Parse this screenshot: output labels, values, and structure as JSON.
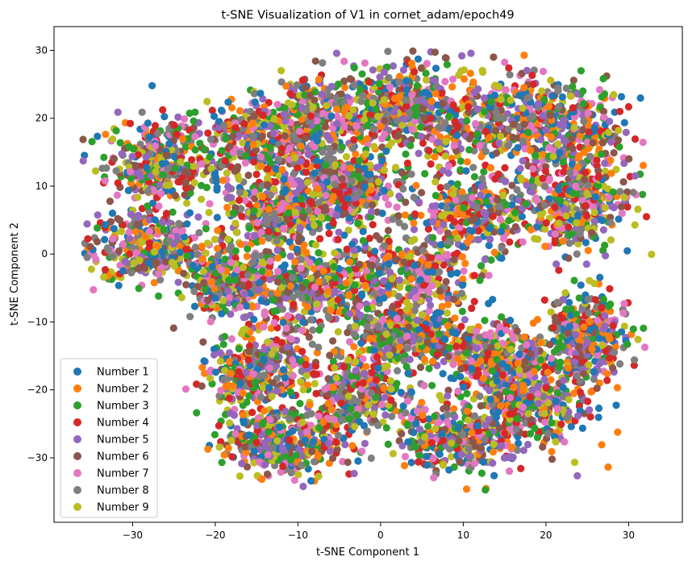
{
  "chart_data": {
    "type": "scatter",
    "title": "t-SNE Visualization of V1 in cornet_adam/epoch49",
    "xlabel": "t-SNE Component 1",
    "ylabel": "t-SNE Component 2",
    "xlim": [
      -39.5,
      36.5
    ],
    "ylim": [
      -39.5,
      33.5
    ],
    "xticks": [
      -30,
      -20,
      -10,
      0,
      10,
      20,
      30
    ],
    "yticks": [
      -30,
      -20,
      -10,
      0,
      10,
      20,
      30
    ],
    "grid": false,
    "legend": "lower-left",
    "series": [
      {
        "name": "Number 1",
        "color": "#1f77b4"
      },
      {
        "name": "Number 2",
        "color": "#ff7f0e"
      },
      {
        "name": "Number 3",
        "color": "#2ca02c"
      },
      {
        "name": "Number 4",
        "color": "#d62728"
      },
      {
        "name": "Number 5",
        "color": "#9467bd"
      },
      {
        "name": "Number 6",
        "color": "#8c564b"
      },
      {
        "name": "Number 7",
        "color": "#e377c2"
      },
      {
        "name": "Number 8",
        "color": "#7f7f7f"
      },
      {
        "name": "Number 9",
        "color": "#bcbd22"
      }
    ],
    "clusters": [
      {
        "center": [
          -27,
          13
        ],
        "spread": [
          5,
          5
        ]
      },
      {
        "center": [
          -28,
          1
        ],
        "spread": [
          6,
          4
        ]
      },
      {
        "center": [
          -15,
          16
        ],
        "spread": [
          7,
          5
        ]
      },
      {
        "center": [
          -8,
          20
        ],
        "spread": [
          7,
          5
        ]
      },
      {
        "center": [
          -12,
          6
        ],
        "spread": [
          6,
          4
        ]
      },
      {
        "center": [
          -8,
          -5
        ],
        "spread": [
          6,
          5
        ]
      },
      {
        "center": [
          -18,
          -4
        ],
        "spread": [
          5,
          4
        ]
      },
      {
        "center": [
          2,
          22
        ],
        "spread": [
          5,
          5
        ]
      },
      {
        "center": [
          12,
          20
        ],
        "spread": [
          7,
          6
        ]
      },
      {
        "center": [
          22,
          18
        ],
        "spread": [
          6,
          6
        ]
      },
      {
        "center": [
          24,
          8
        ],
        "spread": [
          5,
          6
        ]
      },
      {
        "center": [
          12,
          6
        ],
        "spread": [
          7,
          5
        ]
      },
      {
        "center": [
          3,
          -3
        ],
        "spread": [
          7,
          5
        ]
      },
      {
        "center": [
          -4,
          10
        ],
        "spread": [
          5,
          4
        ]
      },
      {
        "center": [
          -15,
          -17
        ],
        "spread": [
          5,
          5
        ]
      },
      {
        "center": [
          -12,
          -28
        ],
        "spread": [
          6,
          4
        ]
      },
      {
        "center": [
          -3,
          -20
        ],
        "spread": [
          6,
          5
        ]
      },
      {
        "center": [
          3,
          -12
        ],
        "spread": [
          5,
          3
        ]
      },
      {
        "center": [
          10,
          -27
        ],
        "spread": [
          7,
          4
        ]
      },
      {
        "center": [
          18,
          -22
        ],
        "spread": [
          6,
          5
        ]
      },
      {
        "center": [
          25,
          -12
        ],
        "spread": [
          4,
          5
        ]
      },
      {
        "center": [
          14,
          -15
        ],
        "spread": [
          5,
          4
        ]
      }
    ],
    "points_per_cluster": 340
  }
}
